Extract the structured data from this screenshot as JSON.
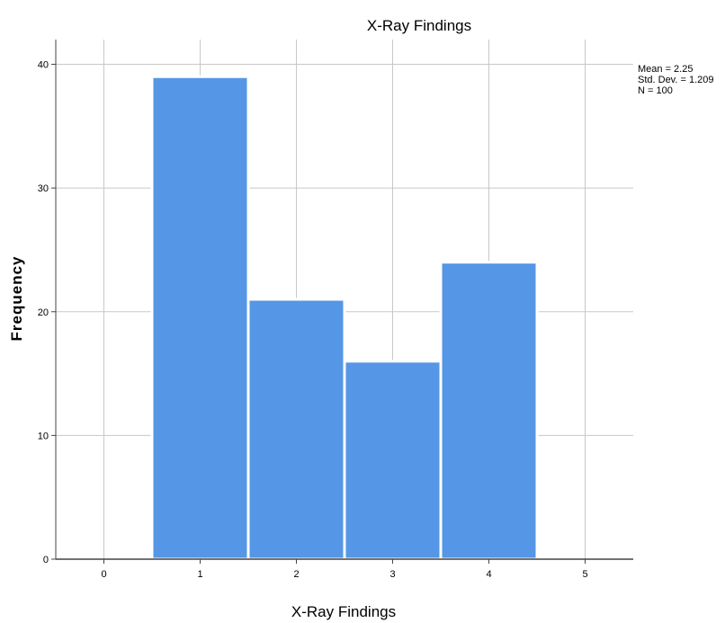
{
  "chart_data": {
    "type": "bar",
    "title": "X-Ray Findings",
    "xlabel": "X-Ray Findings",
    "ylabel": "Frequency",
    "categories": [
      "1",
      "2",
      "3",
      "4"
    ],
    "values": [
      39,
      21,
      16,
      24
    ],
    "x_ticks": [
      "0",
      "1",
      "2",
      "3",
      "4",
      "5"
    ],
    "y_ticks": [
      "0",
      "10",
      "20",
      "30",
      "40"
    ],
    "xlim": [
      -0.5,
      5.5
    ],
    "ylim": [
      0,
      42
    ],
    "grid": true,
    "bar_color": "#5596e6",
    "bar_stroke": "#ffffff",
    "grid_color": "#c8c8c8",
    "stats": [
      "Mean = 2.25",
      "Std. Dev. = 1.209",
      "N = 100"
    ]
  }
}
